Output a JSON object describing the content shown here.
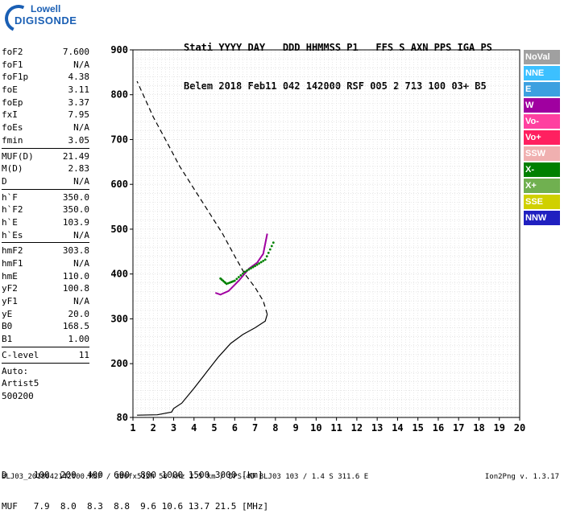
{
  "logo": {
    "line1": "Lowell",
    "line2": "DIGISONDE"
  },
  "header": {
    "row1": "Stati YYYY DAY   DDD HHMMSS P1   FFS S AXN PPS IGA PS",
    "row2": "Belem 2018 Feb11 042 142000 RSF 005 2 713 100 03+ B5"
  },
  "params": [
    {
      "name": "foF2",
      "value": "7.600"
    },
    {
      "name": "foF1",
      "value": "N/A"
    },
    {
      "name": "foF1p",
      "value": "4.38"
    },
    {
      "name": "foE",
      "value": "3.11"
    },
    {
      "name": "foEp",
      "value": "3.37"
    },
    {
      "name": "fxI",
      "value": "7.95"
    },
    {
      "name": "foEs",
      "value": "N/A"
    },
    {
      "name": "fmin",
      "value": "3.05"
    },
    {
      "sep": true
    },
    {
      "name": "MUF(D)",
      "value": "21.49"
    },
    {
      "name": "M(D)",
      "value": "2.83"
    },
    {
      "name": "D",
      "value": "N/A"
    },
    {
      "sep": true
    },
    {
      "name": "h`F",
      "value": "350.0"
    },
    {
      "name": "h`F2",
      "value": "350.0"
    },
    {
      "name": "h`E",
      "value": "103.9"
    },
    {
      "name": "h`Es",
      "value": "N/A"
    },
    {
      "sep": true
    },
    {
      "name": "hmF2",
      "value": "303.8"
    },
    {
      "name": "hmF1",
      "value": "N/A"
    },
    {
      "name": "hmE",
      "value": "110.0"
    },
    {
      "name": "yF2",
      "value": "100.8"
    },
    {
      "name": "yF1",
      "value": "N/A"
    },
    {
      "name": "yE",
      "value": "20.0"
    },
    {
      "name": "B0",
      "value": "168.5"
    },
    {
      "name": "B1",
      "value": "1.00"
    },
    {
      "sep": true
    },
    {
      "name": "C-level",
      "value": "11"
    },
    {
      "sep": true
    },
    {
      "plain": "Auto:"
    },
    {
      "plain": "Artist5"
    },
    {
      "plain": "500200"
    }
  ],
  "legend": [
    {
      "label": "NoVal",
      "color": "#a0a0a0"
    },
    {
      "label": "NNE",
      "color": "#3cc0ff"
    },
    {
      "label": "E",
      "color": "#3ca0e0"
    },
    {
      "label": "W",
      "color": "#a000a0"
    },
    {
      "label": "Vo-",
      "color": "#ff40a0"
    },
    {
      "label": "Vo+",
      "color": "#ff2060"
    },
    {
      "label": "SSW",
      "color": "#f0b0b0"
    },
    {
      "label": "X-",
      "color": "#008000"
    },
    {
      "label": "X+",
      "color": "#70b050"
    },
    {
      "label": "SSE",
      "color": "#d0d000"
    },
    {
      "label": "NNW",
      "color": "#2020c0"
    }
  ],
  "footer": {
    "row1": "D     100  200  400  600  800 1000 1500 3000 [km]",
    "row2": "MUF   7.9  8.0  8.3  8.8  9.6 10.6 13.7 21.5 [MHz]",
    "file": "BLJ03_2018042142000.RSF / 380fx512h 50 kHz 2.5 km / DPS-4D BLJ03 103 / 1.4 S 311.6 E",
    "version": "Ion2Png v. 1.3.17"
  },
  "chart_data": {
    "type": "scatter",
    "x": [
      1,
      2,
      3,
      4,
      5,
      6,
      7,
      8,
      9,
      10,
      11,
      12,
      13,
      14,
      15,
      16,
      17,
      18,
      19,
      20
    ],
    "xlim": [
      1,
      20
    ],
    "ylim": [
      80,
      900
    ],
    "yticks": [
      80,
      200,
      300,
      400,
      500,
      600,
      700,
      800,
      900
    ],
    "series": [
      {
        "name": "profile",
        "style": "solid",
        "color": "#000000",
        "points": [
          [
            1.2,
            85
          ],
          [
            2.2,
            86
          ],
          [
            2.9,
            92
          ],
          [
            3.0,
            100
          ],
          [
            3.4,
            112
          ],
          [
            4.0,
            145
          ],
          [
            4.6,
            180
          ],
          [
            5.2,
            215
          ],
          [
            5.8,
            245
          ],
          [
            6.4,
            265
          ],
          [
            7.0,
            280
          ],
          [
            7.5,
            295
          ],
          [
            7.6,
            310
          ]
        ]
      },
      {
        "name": "profile-topside",
        "style": "dashed",
        "color": "#000000",
        "points": [
          [
            7.6,
            310
          ],
          [
            7.4,
            340
          ],
          [
            7.0,
            370
          ],
          [
            6.5,
            400
          ],
          [
            6.0,
            440
          ],
          [
            5.4,
            490
          ],
          [
            4.7,
            540
          ],
          [
            4.0,
            590
          ],
          [
            3.3,
            640
          ],
          [
            2.6,
            700
          ],
          [
            2.0,
            750
          ],
          [
            1.6,
            790
          ],
          [
            1.2,
            830
          ]
        ]
      },
      {
        "name": "O-trace",
        "style": "solid",
        "color": "#a000a0",
        "points": [
          [
            5.05,
            358
          ],
          [
            5.3,
            354
          ],
          [
            5.7,
            362
          ],
          [
            6.2,
            385
          ],
          [
            6.7,
            412
          ],
          [
            7.1,
            425
          ],
          [
            7.4,
            445
          ],
          [
            7.6,
            490
          ]
        ]
      },
      {
        "name": "X-trace",
        "style": "dots",
        "color": "#008000",
        "points": [
          [
            5.3,
            390
          ],
          [
            5.6,
            378
          ],
          [
            6.0,
            385
          ],
          [
            6.5,
            405
          ],
          [
            7.0,
            418
          ],
          [
            7.5,
            432
          ],
          [
            7.9,
            470
          ]
        ]
      }
    ]
  }
}
